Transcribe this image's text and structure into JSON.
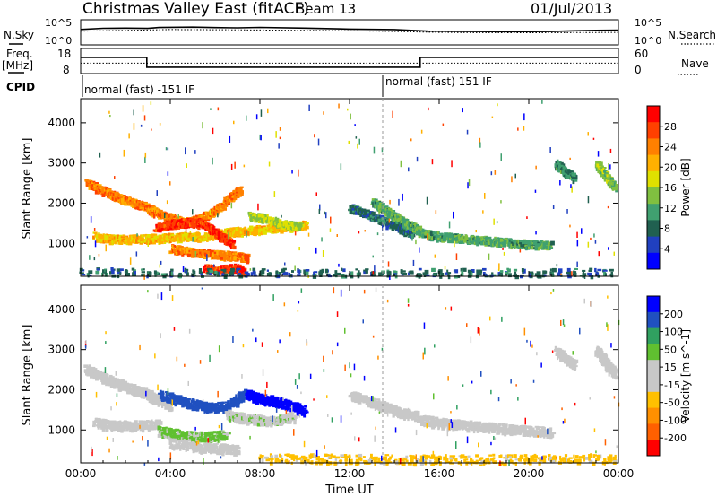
{
  "header": {
    "title": "Christmas Valley East (fitACF)",
    "beam": "Beam 13",
    "date": "01/Jul/2013"
  },
  "left_labels": {
    "nsky": "N.Sky",
    "freq": "Freq.",
    "freq_unit": "[MHz]",
    "cpid": "CPID"
  },
  "right_labels": {
    "nsearch": "N.Search",
    "nave": "Nave"
  },
  "cpid_labels": [
    "normal (fast) -151 IF",
    "normal (fast) 151 IF"
  ],
  "noise_ticks": {
    "left": [
      "10^5",
      "10^0"
    ],
    "right": [
      "10^5",
      "10^0"
    ]
  },
  "freq_ticks": {
    "left": [
      "18",
      "8"
    ],
    "right": [
      "60",
      "0"
    ]
  },
  "colors": {
    "power_scale": [
      "#0000ff",
      "#2040c0",
      "#206050",
      "#40a070",
      "#80c040",
      "#e0e000",
      "#ffb000",
      "#ff8000",
      "#ff4000",
      "#ff0000"
    ],
    "velocity_scale": [
      "#0000ff",
      "#2050c0",
      "#30a060",
      "#60c030",
      "#c8c8c8",
      "#c8c8c8",
      "#ffc000",
      "#ff9000",
      "#ff6000",
      "#ff0000"
    ]
  },
  "chart_data": [
    {
      "type": "line",
      "panel": "noise",
      "series": [
        {
          "name": "N.Sky",
          "x": [
            0,
            1,
            2,
            3,
            3.5,
            5,
            6,
            7,
            8,
            10,
            12,
            14,
            15.5,
            17,
            19,
            21,
            22,
            23,
            24
          ],
          "values": [
            1500,
            2800,
            3000,
            2600,
            4200,
            5000,
            4000,
            3500,
            4500,
            3000,
            1800,
            1400,
            600,
            500,
            450,
            480,
            700,
            900,
            1000
          ]
        },
        {
          "name": "N.Search",
          "x": [
            0,
            2,
            4,
            6,
            8,
            10,
            12,
            14,
            16,
            18,
            20,
            22,
            24
          ],
          "values": [
            600,
            900,
            1400,
            1300,
            1100,
            900,
            700,
            500,
            300,
            260,
            250,
            280,
            300
          ]
        }
      ],
      "xlim": [
        0,
        24
      ],
      "yscale": "log"
    },
    {
      "type": "line",
      "panel": "frequency",
      "series": [
        {
          "name": "Freq.",
          "x": [
            0,
            2.95,
            2.95,
            15.15,
            15.15,
            24
          ],
          "values": [
            15,
            15,
            10.2,
            10.2,
            15,
            15
          ]
        },
        {
          "name": "Nave",
          "x": [
            0,
            24
          ],
          "values": [
            25,
            25
          ]
        }
      ],
      "xlim": [
        0,
        24
      ],
      "ylim": [
        8,
        18
      ],
      "y2lim": [
        0,
        60
      ]
    },
    {
      "type": "heatmap",
      "panel": "power",
      "ylabel": "Slant Range [km]",
      "colorbar_label": "Power [dB]",
      "colorbar_ticks": [
        4,
        8,
        12,
        16,
        20,
        24,
        28
      ],
      "x_ticks": [
        "00:00",
        "04:00",
        "08:00",
        "12:00",
        "16:00",
        "20:00",
        "00:00"
      ],
      "y_ticks": [
        1000,
        2000,
        3000,
        4000
      ],
      "xlim": [
        0,
        24
      ],
      "ylim": [
        180,
        4600
      ],
      "features": [
        {
          "points": [
            [
              0.2,
              2550
            ],
            [
              0.8,
              2380
            ],
            [
              1.5,
              2200
            ],
            [
              2.2,
              2050
            ],
            [
              2.8,
              1950
            ],
            [
              3.3,
              1800
            ],
            [
              4,
              1650
            ],
            [
              4.6,
              1540
            ],
            [
              5.3,
              1650
            ],
            [
              6,
              1850
            ],
            [
              6.6,
              2150
            ],
            [
              7.1,
              2350
            ]
          ],
          "value": 24
        },
        {
          "points": [
            [
              0.6,
              1200
            ],
            [
              1.5,
              1130
            ],
            [
              2.5,
              1140
            ],
            [
              3.5,
              1160
            ],
            [
              4.5,
              1200
            ],
            [
              5.5,
              1200
            ],
            [
              6.5,
              1300
            ],
            [
              7.5,
              1350
            ],
            [
              8.5,
              1400
            ],
            [
              9.5,
              1450
            ],
            [
              10,
              1500
            ]
          ],
          "value": 20
        },
        {
          "points": [
            [
              3.3,
              1400
            ],
            [
              4,
              1500
            ],
            [
              4.6,
              1550
            ],
            [
              5.2,
              1550
            ],
            [
              5.8,
              1400
            ],
            [
              6.2,
              1200
            ],
            [
              6.8,
              1000
            ]
          ],
          "value": 28
        },
        {
          "points": [
            [
              4,
              900
            ],
            [
              5,
              800
            ],
            [
              6,
              760
            ],
            [
              7,
              700
            ],
            [
              7.4,
              650
            ]
          ],
          "value": 24
        },
        {
          "points": [
            [
              5.5,
              400
            ],
            [
              6.3,
              380
            ],
            [
              7,
              420
            ],
            [
              7.2,
              300
            ]
          ],
          "value": 28
        },
        {
          "points": [
            [
              7.5,
              1700
            ],
            [
              8.2,
              1650
            ],
            [
              9,
              1500
            ],
            [
              9.8,
              1450
            ]
          ],
          "value": 16
        },
        {
          "points": [
            [
              12,
              1900
            ],
            [
              12.8,
              1750
            ],
            [
              13.6,
              1550
            ],
            [
              14.3,
              1380
            ],
            [
              14.8,
              1250
            ]
          ],
          "value": 8
        },
        {
          "points": [
            [
              15,
              1300
            ],
            [
              16,
              1200
            ],
            [
              17,
              1150
            ],
            [
              18,
              1100
            ],
            [
              19,
              1050
            ],
            [
              20,
              1000
            ],
            [
              21,
              980
            ]
          ],
          "value": 12
        },
        {
          "points": [
            [
              13,
              2050
            ],
            [
              13.6,
              1850
            ],
            [
              14.1,
              1650
            ],
            [
              14.6,
              1480
            ],
            [
              15.1,
              1350
            ]
          ],
          "value": 12
        },
        {
          "points": [
            [
              21.2,
              3000
            ],
            [
              21.6,
              2800
            ],
            [
              22,
              2650
            ]
          ],
          "value": 10
        },
        {
          "points": [
            [
              23,
              3000
            ],
            [
              23.4,
              2700
            ],
            [
              23.8,
              2400
            ]
          ],
          "value": 14
        },
        {
          "points": [
            [
              0,
              320
            ],
            [
              6,
              300
            ],
            [
              12,
              300
            ],
            [
              18,
              300
            ],
            [
              24,
              300
            ]
          ],
          "value": 8
        }
      ]
    },
    {
      "type": "heatmap",
      "panel": "velocity",
      "ylabel": "Slant Range [km]",
      "xlabel": "Time UT",
      "colorbar_label": "Velocity [m s^-1]",
      "colorbar_ticks": [
        200,
        100,
        50,
        15,
        -15,
        -50,
        -100,
        -200
      ],
      "x_ticks": [
        "00:00",
        "04:00",
        "08:00",
        "12:00",
        "16:00",
        "20:00",
        "00:00"
      ],
      "y_ticks": [
        1000,
        2000,
        3000,
        4000
      ],
      "xlim": [
        0,
        24
      ],
      "ylim": [
        180,
        4600
      ],
      "features": [
        {
          "points": [
            [
              0.2,
              2550
            ],
            [
              0.8,
              2380
            ],
            [
              1.5,
              2200
            ],
            [
              2.2,
              2050
            ],
            [
              2.8,
              1950
            ],
            [
              3.3,
              1800
            ],
            [
              4,
              1650
            ]
          ],
          "value": 0
        },
        {
          "points": [
            [
              0.6,
              1200
            ],
            [
              1.5,
              1130
            ],
            [
              2.5,
              1140
            ],
            [
              3.5,
              1160
            ]
          ],
          "value": 0
        },
        {
          "points": [
            [
              3.5,
              1900
            ],
            [
              4.5,
              1750
            ],
            [
              5.5,
              1600
            ],
            [
              6.5,
              1600
            ],
            [
              7.3,
              1950
            ]
          ],
          "value": 180
        },
        {
          "points": [
            [
              7.4,
              1900
            ],
            [
              8,
              1800
            ],
            [
              9,
              1700
            ],
            [
              10,
              1500
            ]
          ],
          "value": 220
        },
        {
          "points": [
            [
              6.5,
              1400
            ],
            [
              7.5,
              1300
            ],
            [
              8.5,
              1250
            ],
            [
              9.5,
              1350
            ]
          ],
          "value": 40
        },
        {
          "points": [
            [
              3.5,
              1000
            ],
            [
              4.5,
              900
            ],
            [
              5.5,
              850
            ],
            [
              6.5,
              900
            ]
          ],
          "value": 60
        },
        {
          "points": [
            [
              4,
              700
            ],
            [
              5,
              600
            ],
            [
              6,
              580
            ],
            [
              7,
              520
            ]
          ],
          "value": 30
        },
        {
          "points": [
            [
              12,
              1900
            ],
            [
              13,
              1700
            ],
            [
              14,
              1500
            ],
            [
              15,
              1350
            ]
          ],
          "value": -5
        },
        {
          "points": [
            [
              15,
              1300
            ],
            [
              16,
              1200
            ],
            [
              17,
              1150
            ],
            [
              18,
              1100
            ],
            [
              19,
              1050
            ],
            [
              20,
              1000
            ],
            [
              21,
              980
            ]
          ],
          "value": 0
        },
        {
          "points": [
            [
              21.2,
              3000
            ],
            [
              21.6,
              2800
            ],
            [
              22,
              2650
            ]
          ],
          "value": 0
        },
        {
          "points": [
            [
              23,
              3000
            ],
            [
              23.4,
              2700
            ],
            [
              23.8,
              2400
            ]
          ],
          "value": 0
        },
        {
          "points": [
            [
              8,
              320
            ],
            [
              12,
              300
            ],
            [
              16,
              300
            ],
            [
              20,
              300
            ],
            [
              24,
              300
            ]
          ],
          "value": -60
        }
      ]
    }
  ]
}
